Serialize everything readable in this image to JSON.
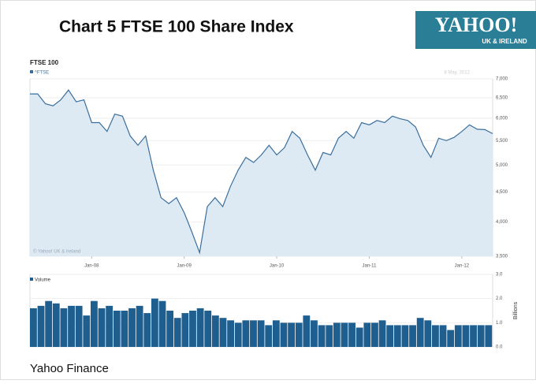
{
  "title": "Chart 5 FTSE 100 Share Index",
  "logo": "YAHOO!",
  "logo_subtitle": "UK & IRELAND",
  "source": "Yahoo Finance",
  "chart_data": [
    {
      "type": "line",
      "title": "FTSE 100",
      "date_label": "8 May, 2012",
      "annotation": "© Yahoo! UK & Ireland",
      "categories": [
        null,
        null,
        null,
        null,
        null,
        null,
        null,
        null,
        "Jan-08",
        null,
        null,
        null,
        null,
        null,
        null,
        null,
        null,
        null,
        null,
        null,
        "Jan-09",
        null,
        null,
        null,
        null,
        null,
        null,
        null,
        null,
        null,
        null,
        null,
        "Jan-10",
        null,
        null,
        null,
        null,
        null,
        null,
        null,
        null,
        null,
        null,
        null,
        "Jan-11",
        null,
        null,
        null,
        null,
        null,
        null,
        null,
        null,
        null,
        null,
        null,
        "Jan-12",
        null,
        null,
        null,
        null
      ],
      "series": [
        {
          "name": "^FTSE",
          "color": "#3a6f9c",
          "fill": "#dde9f3",
          "values": [
            6600,
            6600,
            6350,
            6300,
            6450,
            6700,
            6400,
            6450,
            5900,
            5900,
            5700,
            6100,
            6050,
            5600,
            5400,
            5600,
            4900,
            4400,
            4300,
            4400,
            4150,
            3850,
            3550,
            4250,
            4400,
            4250,
            4600,
            4900,
            5150,
            5050,
            5200,
            5400,
            5200,
            5350,
            5700,
            5550,
            5200,
            4900,
            5250,
            5200,
            5550,
            5700,
            5550,
            5900,
            5850,
            5950,
            5900,
            6050,
            5990,
            5950,
            5800,
            5400,
            5150,
            5550,
            5500,
            5570,
            5700,
            5850,
            5750,
            5740,
            5650
          ]
        }
      ],
      "log_scale": true,
      "ylim": [
        3500,
        7000
      ],
      "yticks": [
        {
          "value": 3500,
          "label": "3,500"
        },
        {
          "value": 4000,
          "label": "4,000"
        },
        {
          "value": 4500,
          "label": "4,500"
        },
        {
          "value": 5000,
          "label": "5,000"
        },
        {
          "value": 5500,
          "label": "5,500"
        },
        {
          "value": 6000,
          "label": "6,000"
        },
        {
          "value": 6500,
          "label": "6,500"
        },
        {
          "value": 7000,
          "label": "7,000"
        }
      ],
      "grid": true
    },
    {
      "type": "bar",
      "y_label": "Billions",
      "categories": [
        null,
        null,
        null,
        null,
        null,
        null,
        null,
        null,
        null,
        null,
        null,
        null,
        null,
        null,
        null,
        null,
        null,
        null,
        null,
        null,
        null,
        null,
        null,
        null,
        null,
        null,
        null,
        null,
        null,
        null,
        null,
        null,
        null,
        null,
        null,
        null,
        null,
        null,
        null,
        null,
        null,
        null,
        null,
        null,
        null,
        null,
        null,
        null,
        null,
        null,
        null,
        null,
        null,
        null,
        null,
        null,
        null,
        null,
        null,
        null,
        null
      ],
      "series": [
        {
          "name": "Volume",
          "color": "#1f5f8f",
          "values": [
            1.6,
            1.7,
            1.9,
            1.8,
            1.6,
            1.7,
            1.7,
            1.3,
            1.9,
            1.6,
            1.7,
            1.5,
            1.5,
            1.6,
            1.7,
            1.4,
            2.0,
            1.9,
            1.5,
            1.2,
            1.4,
            1.5,
            1.6,
            1.5,
            1.3,
            1.2,
            1.1,
            1.0,
            1.1,
            1.1,
            1.1,
            0.9,
            1.1,
            1.0,
            1.0,
            1.0,
            1.3,
            1.1,
            0.9,
            0.9,
            1.0,
            1.0,
            1.0,
            0.8,
            1.0,
            1.0,
            1.1,
            0.9,
            0.9,
            0.9,
            0.9,
            1.2,
            1.1,
            0.9,
            0.9,
            0.7,
            0.9,
            0.9,
            0.9,
            0.9,
            0.9
          ]
        }
      ],
      "ylim": [
        0,
        3
      ],
      "yticks": [
        {
          "value": 0,
          "label": "0.0"
        },
        {
          "value": 1,
          "label": "1.0"
        },
        {
          "value": 2,
          "label": "2.0"
        },
        {
          "value": 3,
          "label": "3.0"
        }
      ],
      "grid": true
    }
  ]
}
